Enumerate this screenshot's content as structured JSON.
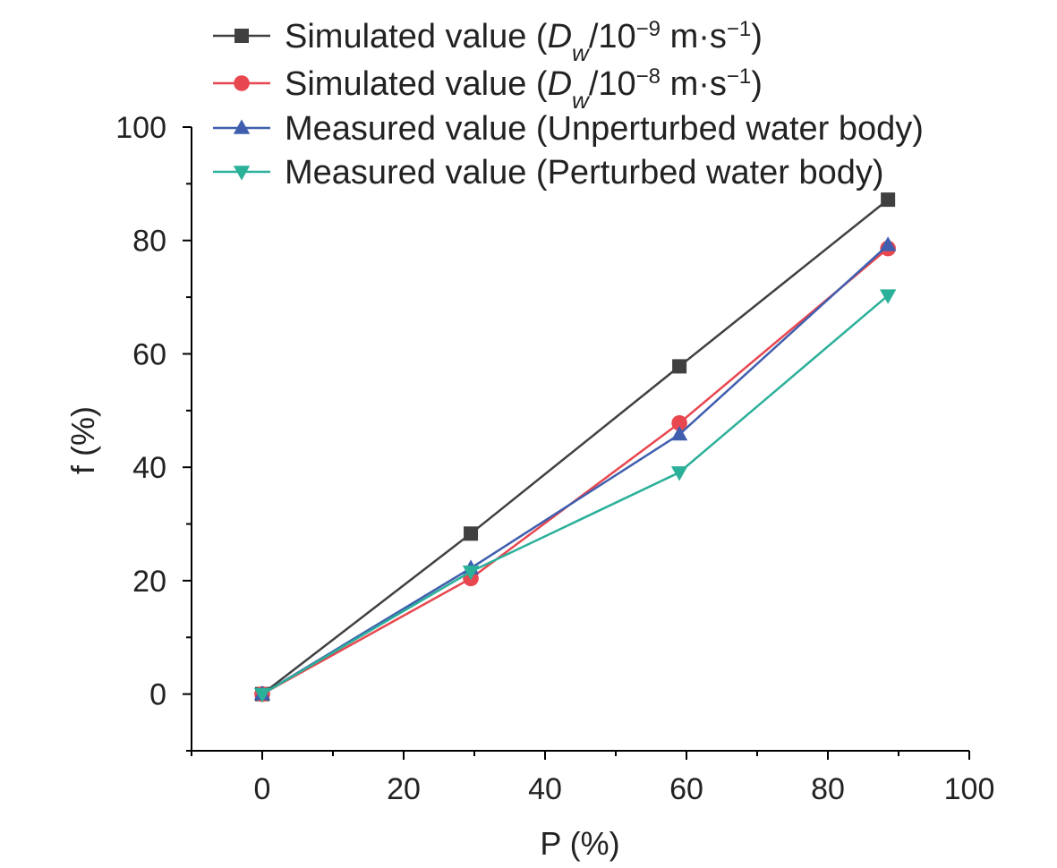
{
  "chart_data": {
    "type": "line",
    "xlabel": "P (%)",
    "ylabel": "f (%)",
    "xlim": [
      -10,
      100
    ],
    "ylim": [
      -10,
      100
    ],
    "x_ticks": [
      0,
      20,
      40,
      60,
      80,
      100
    ],
    "y_ticks": [
      0,
      20,
      40,
      60,
      80,
      100
    ],
    "grid": false,
    "legend_position": "top-right",
    "series": [
      {
        "name": "Simulated value (Dw/10−9 m·s−1)",
        "legend": {
          "pre": "Simulated value (",
          "var": "D",
          "sub": "w",
          "mid": "/10",
          "exp": "−9",
          "post": " m·s",
          "exp2": "−1",
          "end": ")"
        },
        "marker": "square",
        "color": "#404040",
        "x": [
          0,
          29.5,
          59,
          88.5
        ],
        "y": [
          0,
          28.3,
          57.8,
          87.2
        ]
      },
      {
        "name": "Simulated value (Dw/10−8 m·s−1)",
        "legend": {
          "pre": "Simulated value (",
          "var": "D",
          "sub": "w",
          "mid": "/10",
          "exp": "−8",
          "post": " m·s",
          "exp2": "−1",
          "end": ")"
        },
        "marker": "circle",
        "color": "#e8474f",
        "x": [
          0,
          29.5,
          59,
          88.5
        ],
        "y": [
          0,
          20.4,
          47.8,
          78.6
        ]
      },
      {
        "name": "Measured value (Unperturbed water body)",
        "legend_text": "Measured value (Unperturbed water body)",
        "marker": "triangle-up",
        "color": "#3f5fae",
        "x": [
          0,
          29.5,
          59,
          88.5
        ],
        "y": [
          0,
          22.2,
          45.8,
          79.2
        ]
      },
      {
        "name": "Measured value (Perturbed water body)",
        "legend_text": "Measured value (Perturbed water body)",
        "marker": "triangle-down",
        "color": "#2bb09a",
        "x": [
          0,
          29.5,
          59,
          88.5
        ],
        "y": [
          0,
          21.6,
          39.1,
          70.3
        ]
      }
    ]
  }
}
